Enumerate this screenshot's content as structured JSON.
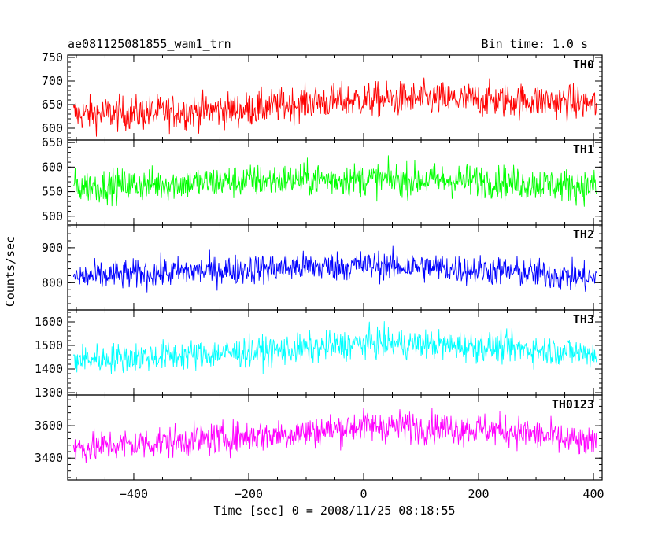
{
  "chart_data": {
    "type": "line",
    "title": "ae081125081855_wam1_trn",
    "bin_time_label": "Bin time: 1.0 s",
    "xlabel": "Time [sec] 0 = 2008/11/25 08:18:55",
    "ylabel": "Counts/sec",
    "xlim": [
      -515,
      415
    ],
    "x_range": [
      -505,
      405
    ],
    "x_ticks": [
      -400,
      -200,
      0,
      200,
      400
    ],
    "x_tick_labels": [
      "−400",
      "−200",
      "0",
      "200",
      "400"
    ],
    "grid": false,
    "legend": "panel labels top-right",
    "panels": [
      {
        "name": "TH0",
        "color": "#ff0000",
        "ylim": [
          575,
          755
        ],
        "yticks": [
          600,
          650,
          700,
          750
        ],
        "ytick_labels": [
          "600",
          "650",
          "700",
          "750"
        ],
        "trend": [
          [
            -505,
            630
          ],
          [
            -400,
            632
          ],
          [
            -200,
            640
          ],
          [
            -100,
            655
          ],
          [
            0,
            660
          ],
          [
            100,
            662
          ],
          [
            200,
            660
          ],
          [
            300,
            658
          ],
          [
            405,
            652
          ]
        ],
        "noise": 26
      },
      {
        "name": "TH1",
        "color": "#00ff00",
        "ylim": [
          482,
          655
        ],
        "yticks": [
          500,
          550,
          600,
          650
        ],
        "ytick_labels": [
          "500",
          "550",
          "600",
          "650"
        ],
        "trend": [
          [
            -505,
            560
          ],
          [
            -300,
            568
          ],
          [
            -100,
            575
          ],
          [
            0,
            575
          ],
          [
            200,
            572
          ],
          [
            405,
            560
          ]
        ],
        "noise": 24
      },
      {
        "name": "TH2",
        "color": "#0000ff",
        "ylim": [
          722,
          965
        ],
        "yticks": [
          800,
          900
        ],
        "ytick_labels": [
          "800",
          "900"
        ],
        "trend": [
          [
            -505,
            815
          ],
          [
            -300,
            832
          ],
          [
            -100,
            845
          ],
          [
            0,
            850
          ],
          [
            100,
            845
          ],
          [
            250,
            832
          ],
          [
            405,
            812
          ]
        ],
        "noise": 30
      },
      {
        "name": "TH3",
        "color": "#00ffff",
        "ylim": [
          1290,
          1650
        ],
        "yticks": [
          1300,
          1400,
          1500,
          1600
        ],
        "ytick_labels": [
          "1300",
          "1400",
          "1500",
          "1600"
        ],
        "trend": [
          [
            -505,
            1440
          ],
          [
            -300,
            1460
          ],
          [
            -100,
            1485
          ],
          [
            0,
            1510
          ],
          [
            100,
            1505
          ],
          [
            250,
            1490
          ],
          [
            405,
            1465
          ]
        ],
        "noise": 45
      },
      {
        "name": "TH0123",
        "color": "#ff00ff",
        "ylim": [
          3265,
          3790
        ],
        "yticks": [
          3400,
          3600
        ],
        "ytick_labels": [
          "3400",
          "3600"
        ],
        "trend": [
          [
            -505,
            3460
          ],
          [
            -300,
            3510
          ],
          [
            -100,
            3560
          ],
          [
            0,
            3600
          ],
          [
            100,
            3595
          ],
          [
            250,
            3570
          ],
          [
            405,
            3480
          ]
        ],
        "noise": 70
      }
    ]
  }
}
